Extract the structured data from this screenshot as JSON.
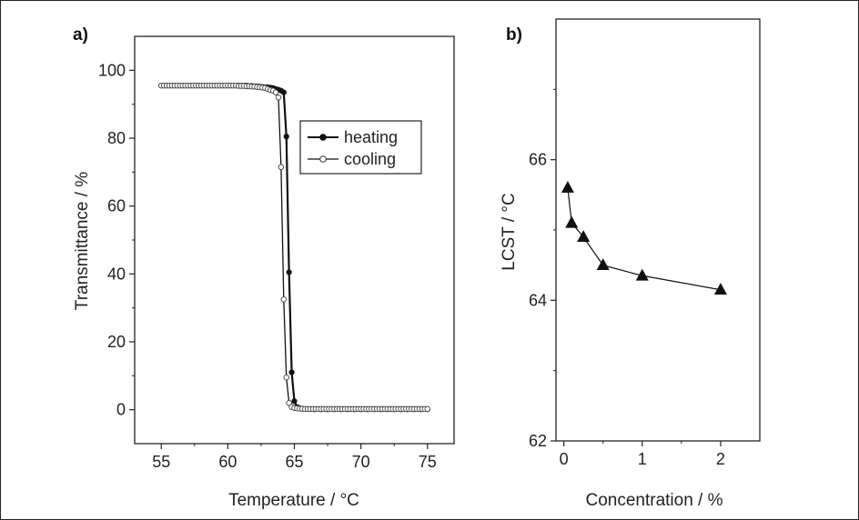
{
  "chart_data": [
    {
      "panel_label": "a)",
      "type": "line",
      "xlabel": "Temperature / °C",
      "ylabel": "Transmittance / %",
      "xlim": [
        53,
        77
      ],
      "ylim": [
        -10,
        110
      ],
      "xticks": [
        "55",
        "60",
        "65",
        "70",
        "75"
      ],
      "yticks": [
        "0",
        "20",
        "40",
        "60",
        "80",
        "100"
      ],
      "legend_position": "upper-right inside",
      "grid": false,
      "series": [
        {
          "name": "heating",
          "marker": "filled-circle",
          "color": "#111111",
          "x": [
            55,
            55.2,
            55.4,
            55.6,
            55.8,
            56,
            56.2,
            56.4,
            56.6,
            56.8,
            57,
            57.2,
            57.4,
            57.6,
            57.8,
            58,
            58.2,
            58.4,
            58.6,
            58.8,
            59,
            59.2,
            59.4,
            59.6,
            59.8,
            60,
            60.2,
            60.4,
            60.6,
            60.8,
            61,
            61.2,
            61.4,
            61.6,
            61.8,
            62,
            62.2,
            62.4,
            62.6,
            62.8,
            63,
            63.2,
            63.4,
            63.6,
            63.8,
            64,
            64.2,
            64.4,
            64.6,
            64.8,
            65,
            65.2,
            65.4,
            65.6,
            65.8,
            66,
            66.5,
            67,
            67.5,
            68,
            68.5,
            69,
            69.5,
            70,
            70.5,
            71,
            71.5,
            72,
            72.5,
            73,
            73.5,
            74,
            74.5,
            75
          ],
          "y": [
            95.5,
            95.5,
            95.5,
            95.5,
            95.5,
            95.5,
            95.5,
            95.5,
            95.5,
            95.5,
            95.5,
            95.5,
            95.5,
            95.5,
            95.5,
            95.5,
            95.5,
            95.5,
            95.5,
            95.5,
            95.5,
            95.5,
            95.5,
            95.5,
            95.5,
            95.5,
            95.5,
            95.5,
            95.5,
            95.5,
            95.5,
            95.5,
            95.5,
            95.4,
            95.4,
            95.3,
            95.3,
            95.2,
            95.1,
            95,
            95,
            94.9,
            94.8,
            94.5,
            94.3,
            94,
            93.5,
            80.5,
            40.5,
            11,
            2.5,
            0.8,
            0.5,
            0.3,
            0.2,
            0.2,
            0.1,
            0.1,
            0.1,
            0.1,
            0.1,
            0.1,
            0.1,
            0.1,
            0.1,
            0.1,
            0.1,
            0.1,
            0.1,
            0.1,
            0.1,
            0.1,
            0.1,
            0.1
          ]
        },
        {
          "name": "cooling",
          "marker": "open-circle",
          "color": "#111111",
          "x": [
            55,
            55.2,
            55.4,
            55.6,
            55.8,
            56,
            56.2,
            56.4,
            56.6,
            56.8,
            57,
            57.2,
            57.4,
            57.6,
            57.8,
            58,
            58.2,
            58.4,
            58.6,
            58.8,
            59,
            59.2,
            59.4,
            59.6,
            59.8,
            60,
            60.2,
            60.4,
            60.6,
            60.8,
            61,
            61.2,
            61.4,
            61.6,
            61.8,
            62,
            62.2,
            62.4,
            62.6,
            62.8,
            63,
            63.2,
            63.4,
            63.6,
            63.8,
            64,
            64.2,
            64.4,
            64.6,
            64.8,
            65,
            65.2,
            65.4,
            65.6,
            65.8,
            66,
            66.2,
            66.4,
            66.6,
            66.8,
            67,
            67.2,
            67.4,
            67.6,
            67.8,
            68,
            68.2,
            68.4,
            68.6,
            68.8,
            69,
            69.2,
            69.4,
            69.6,
            69.8,
            70,
            70.2,
            70.4,
            70.6,
            70.8,
            71,
            71.2,
            71.4,
            71.6,
            71.8,
            72,
            72.2,
            72.4,
            72.6,
            72.8,
            73,
            73.2,
            73.4,
            73.6,
            73.8,
            74,
            74.2,
            74.4,
            74.6,
            74.8,
            75
          ],
          "y": [
            95.5,
            95.5,
            95.5,
            95.5,
            95.5,
            95.5,
            95.5,
            95.5,
            95.5,
            95.5,
            95.5,
            95.5,
            95.5,
            95.5,
            95.5,
            95.5,
            95.5,
            95.5,
            95.5,
            95.5,
            95.5,
            95.5,
            95.5,
            95.5,
            95.5,
            95.5,
            95.5,
            95.5,
            95.5,
            95.4,
            95.4,
            95.4,
            95.3,
            95.3,
            95.2,
            95.2,
            95.1,
            95,
            94.9,
            94.8,
            94.5,
            94.2,
            94,
            93.5,
            92,
            71.5,
            32.5,
            9.5,
            2,
            0.8,
            0.5,
            0.4,
            0.3,
            0.3,
            0.2,
            0.2,
            0.2,
            0.2,
            0.2,
            0.2,
            0.2,
            0.2,
            0.2,
            0.2,
            0.2,
            0.2,
            0.2,
            0.2,
            0.2,
            0.2,
            0.2,
            0.2,
            0.2,
            0.2,
            0.2,
            0.2,
            0.2,
            0.2,
            0.2,
            0.2,
            0.2,
            0.2,
            0.2,
            0.2,
            0.2,
            0.2,
            0.2,
            0.2,
            0.2,
            0.2,
            0.2,
            0.2,
            0.2,
            0.2,
            0.2,
            0.2,
            0.2,
            0.2,
            0.2,
            0.2,
            0.2
          ]
        }
      ]
    },
    {
      "panel_label": "b)",
      "type": "line",
      "xlabel": "Concentration / %",
      "ylabel": "LCST / °C",
      "xlim": [
        -0.1,
        2.5
      ],
      "ylim": [
        62,
        68
      ],
      "xticks": [
        "0",
        "1",
        "2"
      ],
      "yticks": [
        "62",
        "64",
        "66"
      ],
      "grid": false,
      "series": [
        {
          "marker": "filled-triangle",
          "color": "#111111",
          "x": [
            0.05,
            0.1,
            0.25,
            0.5,
            1,
            2
          ],
          "y": [
            65.6,
            65.1,
            64.9,
            64.5,
            64.35,
            64.15
          ]
        }
      ]
    }
  ]
}
